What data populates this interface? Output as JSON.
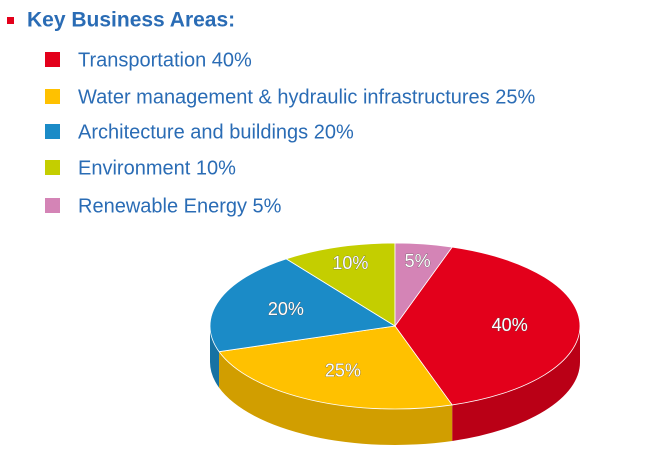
{
  "chart_data": {
    "type": "pie",
    "title": "Key Business Areas:",
    "categories": [
      "Transportation 40%",
      "Water management & hydraulic infrastructures 25%",
      "Architecture and buildings 20%",
      "Environment 10%",
      "Renewable Energy 5%"
    ],
    "values": [
      40,
      25,
      20,
      10,
      5
    ],
    "value_labels": [
      "40%",
      "25%",
      "20%",
      "10%",
      "5%"
    ],
    "colors": [
      "#e3001b",
      "#ffc100",
      "#1b8bc7",
      "#c4ce00",
      "#d484b6"
    ]
  }
}
